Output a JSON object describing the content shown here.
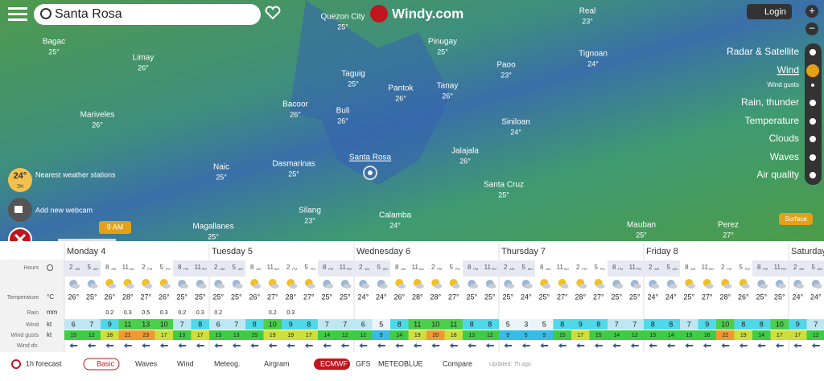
{
  "header": {
    "search": "Santa Rosa",
    "logo": "Windy.com",
    "login": "Login"
  },
  "map_labels": [
    {
      "name": "Bagac",
      "temp": "25°"
    },
    {
      "name": "Limay",
      "temp": "26°"
    },
    {
      "name": "Mariveles",
      "temp": "26°"
    },
    {
      "name": "Quezon City",
      "temp": "25°"
    },
    {
      "name": "Taguig",
      "temp": "25°"
    },
    {
      "name": "Pantok",
      "temp": "26°"
    },
    {
      "name": "Pinugay",
      "temp": "25°"
    },
    {
      "name": "Tanay",
      "temp": "26°"
    },
    {
      "name": "Paoo",
      "temp": "23°"
    },
    {
      "name": "Real",
      "temp": "23°"
    },
    {
      "name": "Tignoan",
      "temp": "24°"
    },
    {
      "name": "Bacoor",
      "temp": "26°"
    },
    {
      "name": "Buli",
      "temp": "26°"
    },
    {
      "name": "Siniloan",
      "temp": "24°"
    },
    {
      "name": "Naic",
      "temp": "25°"
    },
    {
      "name": "Dasmarinas",
      "temp": "25°"
    },
    {
      "name": "Jalajala",
      "temp": "26°"
    },
    {
      "name": "Santa Cruz",
      "temp": "25°"
    },
    {
      "name": "Silang",
      "temp": "23°"
    },
    {
      "name": "Calamba",
      "temp": "24°"
    },
    {
      "name": "Magallanes",
      "temp": "25°"
    },
    {
      "name": "Mauban",
      "temp": "25°"
    },
    {
      "name": "Perez",
      "temp": "27°"
    }
  ],
  "location": "Santa Rosa",
  "layers": [
    "Radar & Satellite",
    "Wind",
    "Wind gusts",
    "Rain, thunder",
    "Temperature",
    "Clouds",
    "Waves",
    "Air quality"
  ],
  "surface": "Surface",
  "side": {
    "temp": "24°",
    "sub": "2kt",
    "nearest": "Nearest weather stations",
    "webcam": "Add new webcam",
    "time": "9 AM"
  },
  "forecast": {
    "days": [
      "Monday 4",
      "Tuesday 5",
      "Wednesday 6",
      "Thursday 7",
      "Friday 8",
      "Saturday"
    ],
    "row_labels": [
      "Hours",
      "Temperature",
      "Rain",
      "Wind",
      "Wind gusts",
      "Wind dir."
    ],
    "units": [
      "°C",
      "mm",
      "kt",
      "kt"
    ],
    "hours": [
      "2",
      "5",
      "8",
      "11",
      "2",
      "5",
      "8",
      "11",
      "2",
      "5",
      "8",
      "11",
      "2",
      "5",
      "8",
      "11",
      "2",
      "5",
      "8",
      "11",
      "2",
      "5",
      "8",
      "11",
      "2",
      "5",
      "8",
      "11",
      "2",
      "5",
      "8",
      "11",
      "2",
      "5",
      "8",
      "11",
      "2",
      "5",
      "8",
      "11",
      "2",
      "5"
    ],
    "suffix": [
      "AM",
      "AM",
      "AM",
      "AM",
      "PM",
      "PM",
      "PM",
      "PM",
      "AM",
      "AM",
      "AM",
      "AM",
      "PM",
      "PM",
      "PM",
      "PM",
      "AM",
      "AM",
      "AM",
      "AM",
      "PM",
      "PM",
      "PM",
      "PM",
      "AM",
      "AM",
      "AM",
      "AM",
      "PM",
      "PM",
      "PM",
      "PM",
      "AM",
      "AM",
      "AM",
      "AM",
      "PM",
      "PM",
      "PM",
      "PM",
      "AM",
      "AM"
    ],
    "temperature": [
      "26°",
      "25°",
      "26°",
      "28°",
      "27°",
      "26°",
      "25°",
      "25°",
      "25°",
      "25°",
      "26°",
      "27°",
      "28°",
      "27°",
      "25°",
      "25°",
      "24°",
      "24°",
      "26°",
      "28°",
      "28°",
      "27°",
      "25°",
      "25°",
      "25°",
      "24°",
      "25°",
      "27°",
      "28°",
      "27°",
      "25°",
      "25°",
      "24°",
      "24°",
      "25°",
      "27°",
      "28°",
      "26°",
      "25°",
      "25°",
      "24°",
      "24°"
    ],
    "rain": [
      null,
      null,
      0.2,
      0.3,
      0.5,
      0.3,
      0.2,
      0.3,
      0.2,
      null,
      null,
      0.2,
      0.3,
      null,
      null,
      null,
      null,
      null,
      null,
      null,
      null,
      null,
      null,
      null,
      null,
      null,
      null,
      null,
      null,
      null,
      null,
      null,
      null,
      null,
      null,
      null,
      null,
      null,
      null,
      null,
      null,
      null
    ],
    "wind": [
      6,
      7,
      9,
      11,
      13,
      10,
      7,
      8,
      6,
      7,
      8,
      10,
      9,
      8,
      7,
      7,
      6,
      5,
      8,
      11,
      10,
      11,
      8,
      8,
      5,
      3,
      5,
      8,
      9,
      8,
      7,
      7,
      8,
      8,
      7,
      9,
      10,
      8,
      8,
      10,
      9,
      7
    ],
    "gusts": [
      15,
      12,
      18,
      21,
      23,
      17,
      13,
      17,
      13,
      13,
      15,
      19,
      19,
      17,
      14,
      12,
      12,
      9,
      14,
      19,
      20,
      18,
      13,
      12,
      9,
      5,
      9,
      15,
      17,
      15,
      14,
      12,
      15,
      14,
      13,
      16,
      22,
      19,
      14,
      17,
      17,
      12
    ]
  },
  "footer": [
    "1h forecast",
    "Basic",
    "Waves",
    "Wind",
    "Meteog.",
    "Airgram",
    "ECMWF",
    "GFS",
    "METEOBLUE",
    "Compare",
    "Updated: 7h ago"
  ]
}
